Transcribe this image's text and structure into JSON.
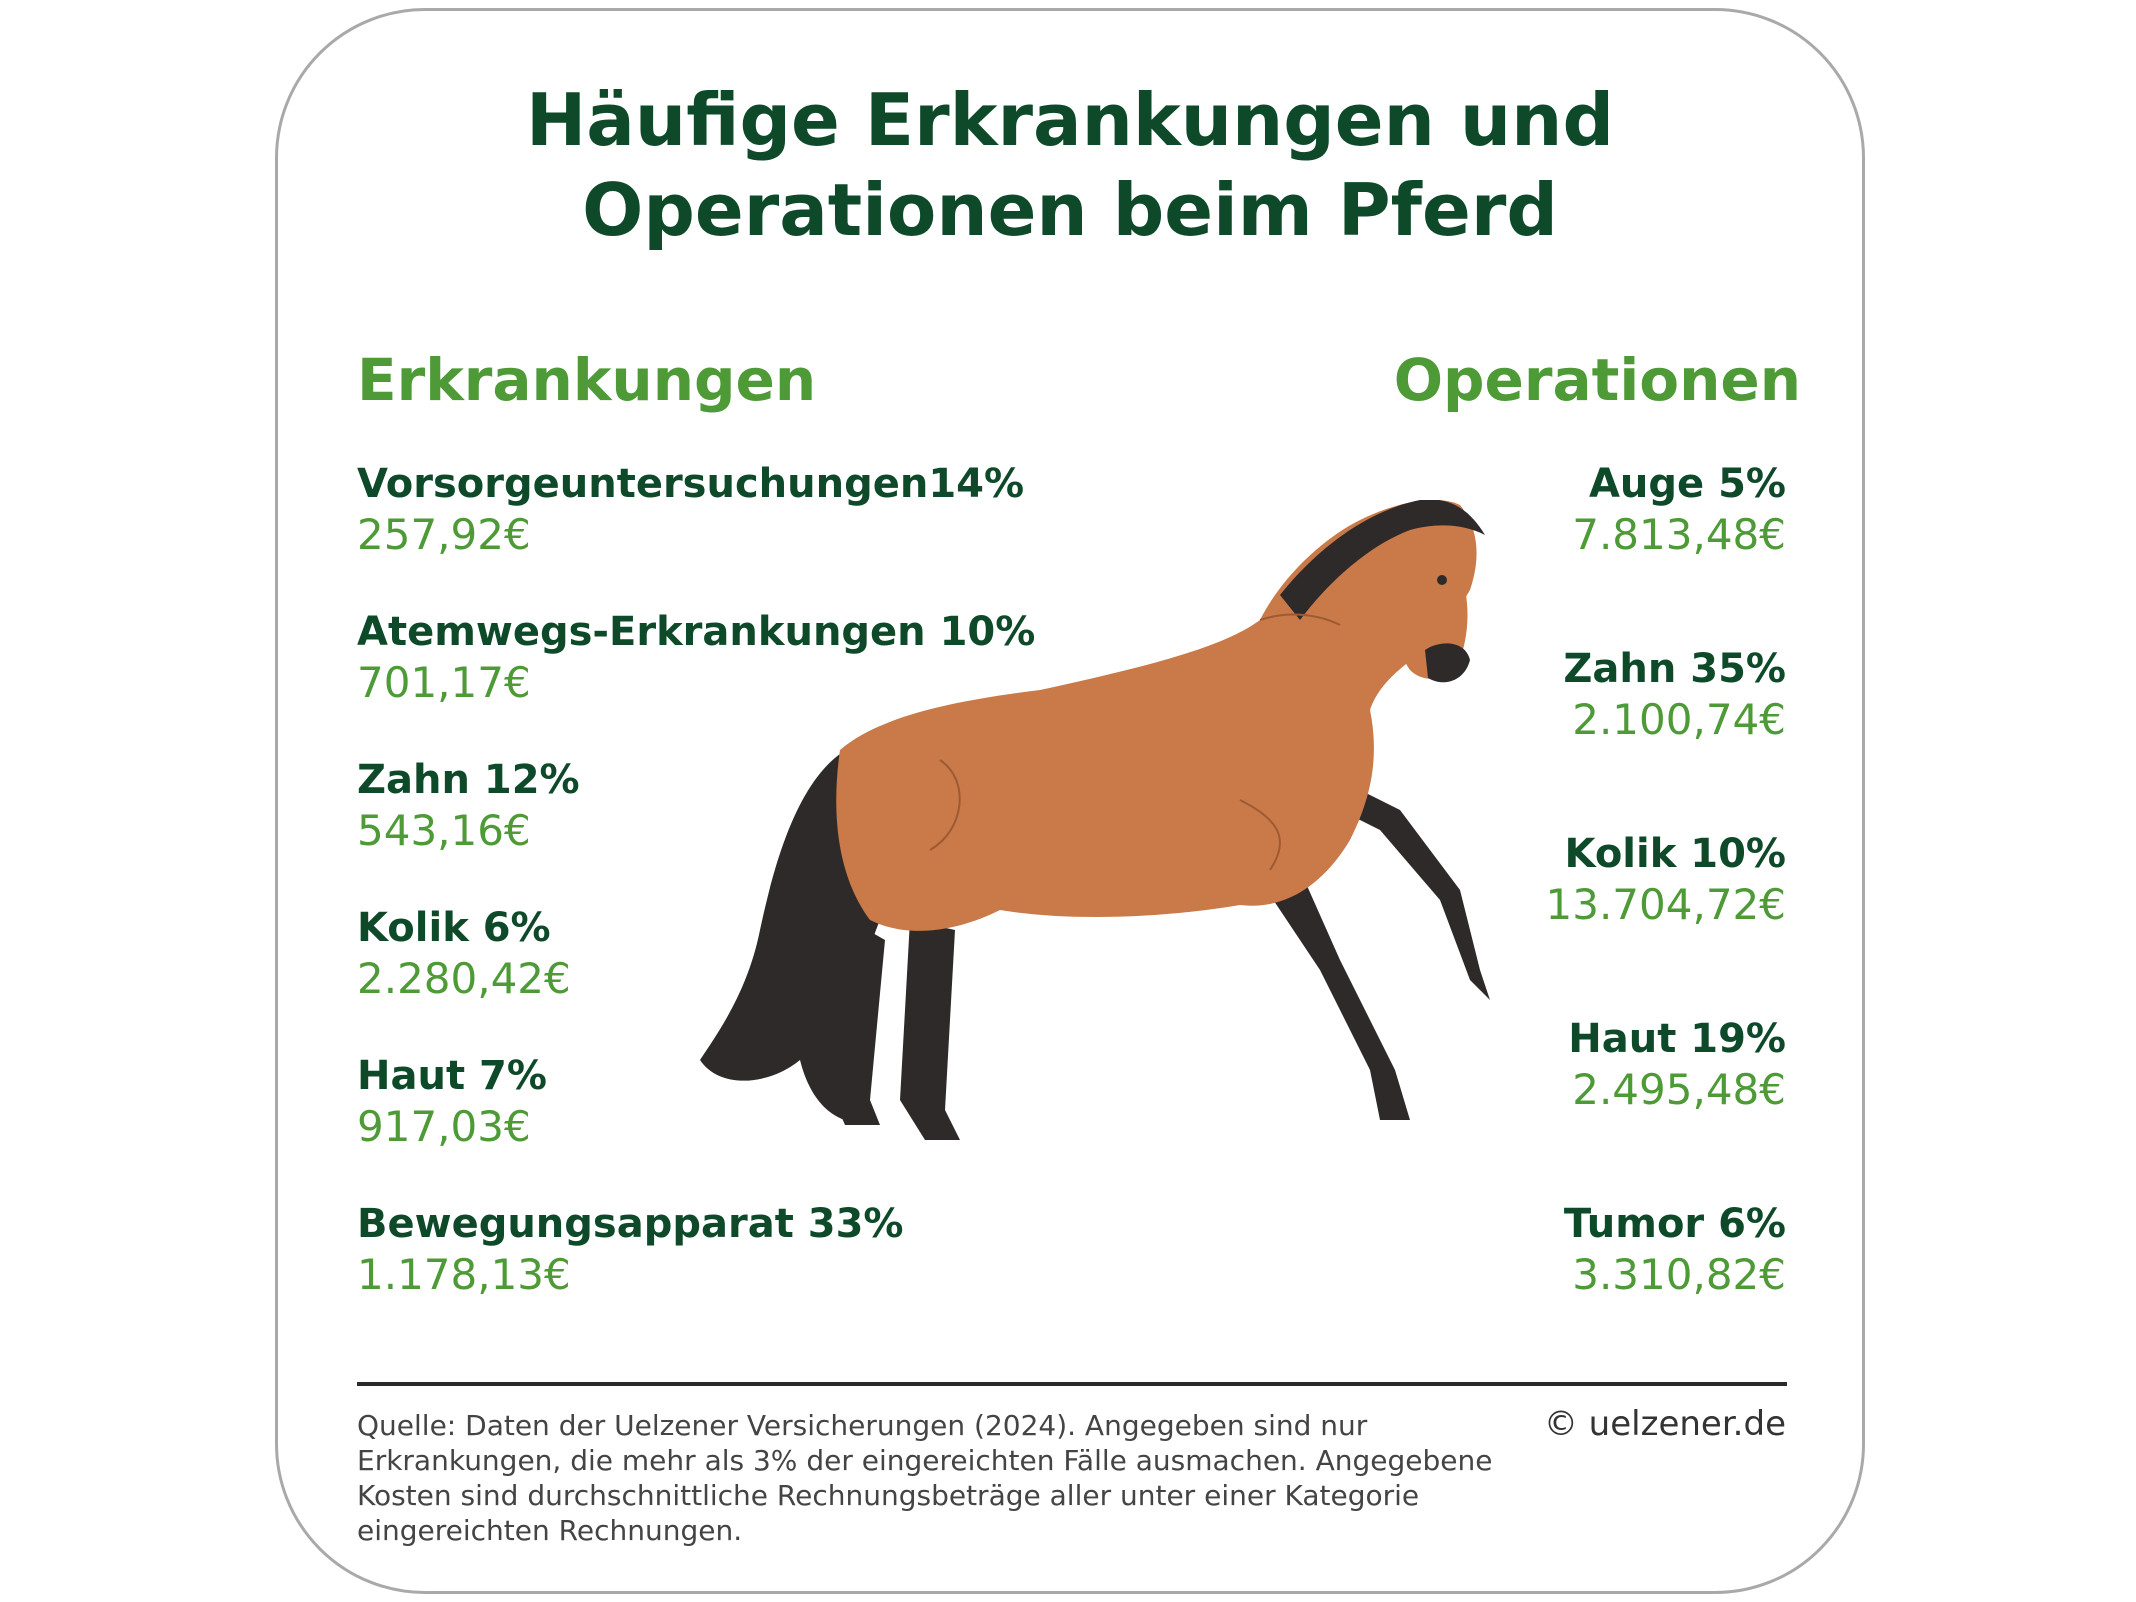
{
  "title": "Häufige Erkrankungen und\nOperationen beim Pferd",
  "erkrankungen": {
    "heading": "Erkrankungen",
    "items": [
      {
        "label": "Vorsorgeuntersuchungen14%",
        "cost": "257,92€"
      },
      {
        "label": "Atemwegs-Erkrankungen 10%",
        "cost": "701,17€"
      },
      {
        "label": "Zahn 12%",
        "cost": "543,16€"
      },
      {
        "label": "Kolik 6%",
        "cost": "2.280,42€"
      },
      {
        "label": "Haut 7%",
        "cost": "917,03€"
      },
      {
        "label": "Bewegungsapparat 33%",
        "cost": "1.178,13€"
      }
    ]
  },
  "operationen": {
    "heading": "Operationen",
    "items": [
      {
        "label": "Auge 5%",
        "cost": "7.813,48€"
      },
      {
        "label": "Zahn 35%",
        "cost": "2.100,74€"
      },
      {
        "label": "Kolik 10%",
        "cost": "13.704,72€"
      },
      {
        "label": "Haut 19%",
        "cost": "2.495,48€"
      },
      {
        "label": "Tumor 6%",
        "cost": "3.310,82€"
      }
    ]
  },
  "footer": {
    "source": "Quelle: Daten der Uelzener Versicherungen (2024). Angegeben sind nur Erkrankungen, die mehr als 3% der eingereichten Fälle ausmachen. Angegebene Kosten sind durchschnittliche Rechnungsbeträge aller unter einer Kategorie eingereichten Rechnungen.",
    "copyright": "© uelzener.de"
  },
  "colors": {
    "title": "#0e4a2a",
    "accent_green": "#4d9a36",
    "horse_body": "#c97a48",
    "horse_mane": "#2f2a2a"
  },
  "illustration": "horse-illustration"
}
